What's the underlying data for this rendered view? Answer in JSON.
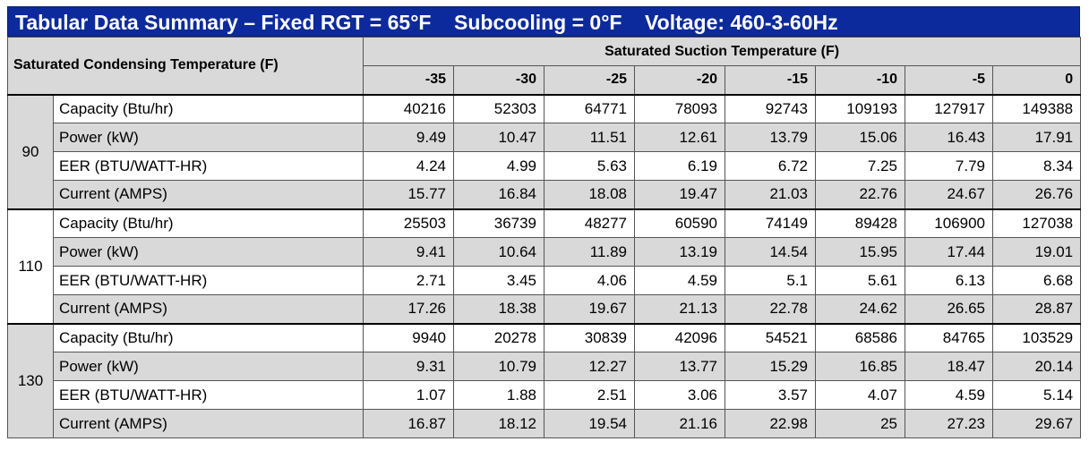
{
  "title": "Tabular Data Summary – Fixed RGT = 65°F    Subcooling = 0°F    Voltage: 460-3-60Hz",
  "header": {
    "row_label": "Saturated Condensing Temperature (F)",
    "col_group_label": "Saturated Suction Temperature (F)",
    "columns": [
      "-35",
      "-30",
      "-25",
      "-20",
      "-15",
      "-10",
      "-5",
      "0"
    ]
  },
  "groups": [
    {
      "temp": "90",
      "rows": [
        {
          "label": "Capacity (Btu/hr)",
          "values": [
            "40216",
            "52303",
            "64771",
            "78093",
            "92743",
            "109193",
            "127917",
            "149388"
          ]
        },
        {
          "label": "Power (kW)",
          "values": [
            "9.49",
            "10.47",
            "11.51",
            "12.61",
            "13.79",
            "15.06",
            "16.43",
            "17.91"
          ]
        },
        {
          "label": "EER (BTU/WATT-HR)",
          "values": [
            "4.24",
            "4.99",
            "5.63",
            "6.19",
            "6.72",
            "7.25",
            "7.79",
            "8.34"
          ]
        },
        {
          "label": "Current (AMPS)",
          "values": [
            "15.77",
            "16.84",
            "18.08",
            "19.47",
            "21.03",
            "22.76",
            "24.67",
            "26.76"
          ]
        }
      ]
    },
    {
      "temp": "110",
      "rows": [
        {
          "label": "Capacity (Btu/hr)",
          "values": [
            "25503",
            "36739",
            "48277",
            "60590",
            "74149",
            "89428",
            "106900",
            "127038"
          ]
        },
        {
          "label": "Power (kW)",
          "values": [
            "9.41",
            "10.64",
            "11.89",
            "13.19",
            "14.54",
            "15.95",
            "17.44",
            "19.01"
          ]
        },
        {
          "label": "EER (BTU/WATT-HR)",
          "values": [
            "2.71",
            "3.45",
            "4.06",
            "4.59",
            "5.1",
            "5.61",
            "6.13",
            "6.68"
          ]
        },
        {
          "label": "Current (AMPS)",
          "values": [
            "17.26",
            "18.38",
            "19.67",
            "21.13",
            "22.78",
            "24.62",
            "26.65",
            "28.87"
          ]
        }
      ]
    },
    {
      "temp": "130",
      "rows": [
        {
          "label": "Capacity (Btu/hr)",
          "values": [
            "9940",
            "20278",
            "30839",
            "42096",
            "54521",
            "68586",
            "84765",
            "103529"
          ]
        },
        {
          "label": "Power (kW)",
          "values": [
            "9.31",
            "10.79",
            "12.27",
            "13.77",
            "15.29",
            "16.85",
            "18.47",
            "20.14"
          ]
        },
        {
          "label": "EER (BTU/WATT-HR)",
          "values": [
            "1.07",
            "1.88",
            "2.51",
            "3.06",
            "3.57",
            "4.07",
            "4.59",
            "5.14"
          ]
        },
        {
          "label": "Current (AMPS)",
          "values": [
            "16.87",
            "18.12",
            "19.54",
            "21.16",
            "22.98",
            "25",
            "27.23",
            "29.67"
          ]
        }
      ]
    }
  ],
  "colors": {
    "title_bg": "#0c2a9b",
    "header_bg": "#d9d9d9",
    "alt_row_bg": "#d9d9d9"
  }
}
